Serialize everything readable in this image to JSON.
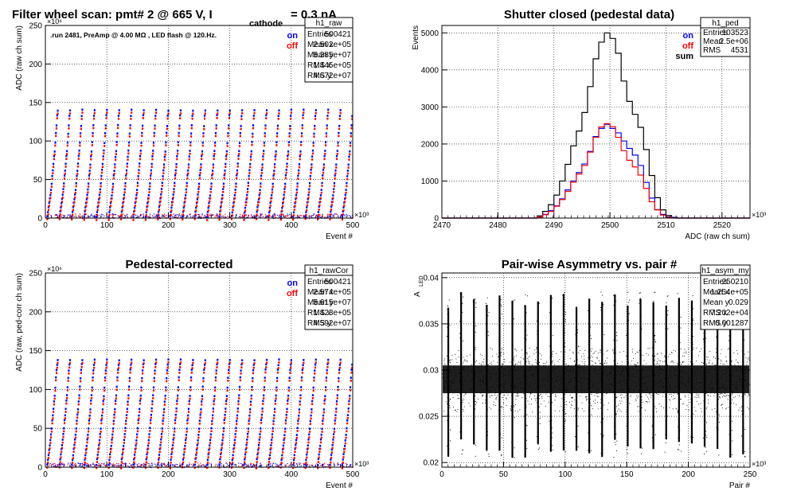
{
  "colors": {
    "on": "#0000ff",
    "off": "#ff0000",
    "sum": "#000000",
    "markers": "#000000"
  },
  "annotation": ".run 2481, PreAmp @ 4.00 MΩ , LED flash @  120.Hz.",
  "chart_data": [
    {
      "type": "scatter",
      "title": {
        "main": "Filter wheel scan: pmt#   2 @   665 V, I",
        "sub": "cathode",
        "tail": " = 0.3 nA"
      },
      "xlabel": "Event #",
      "ylabel": "ADC (raw ch sum)",
      "x_exponent": "×10³",
      "y_exponent": "×10⁶",
      "xlim": [
        0,
        500
      ],
      "ylim": [
        0,
        250
      ],
      "x_ticks": [
        0,
        100,
        200,
        300,
        400,
        500
      ],
      "y_ticks": [
        0,
        50,
        100,
        150,
        200,
        250
      ],
      "grid": true,
      "legend": [
        {
          "name": "on",
          "color": "#0000ff"
        },
        {
          "name": "off",
          "color": "#ff0000"
        }
      ],
      "stats": {
        "name": "h1_raw",
        "rows": [
          [
            "Entries",
            "500421"
          ],
          [
            "Mean x",
            "2.502e+05"
          ],
          [
            "Mean y",
            "5.285e+07"
          ],
          [
            "RMS x",
            "1.445e+05"
          ],
          [
            "RMS y",
            "4.672e+07"
          ]
        ]
      },
      "levels": [
        2,
        8,
        14,
        20,
        25,
        30,
        37,
        45,
        55,
        62,
        70,
        80,
        87,
        98,
        110,
        120,
        133,
        140
      ],
      "period": 20
    },
    {
      "type": "histogram",
      "title": {
        "main": "Shutter closed (pedestal data)"
      },
      "xlabel": "ADC (raw ch sum)",
      "ylabel": "Events",
      "x_exponent": "×10³",
      "xlim": [
        2470,
        2525
      ],
      "ylim": [
        0,
        5200
      ],
      "x_ticks": [
        2470,
        2480,
        2490,
        2500,
        2510,
        2520
      ],
      "y_ticks": [
        0,
        1000,
        2000,
        3000,
        4000,
        5000
      ],
      "grid": true,
      "legend": [
        {
          "name": "on",
          "color": "#0000ff"
        },
        {
          "name": "off",
          "color": "#ff0000"
        },
        {
          "name": "sum",
          "color": "#000000"
        }
      ],
      "stats": {
        "name": "h1_ped",
        "rows": [
          [
            "Entries",
            "103523"
          ],
          [
            "Mean",
            "2.5e+06"
          ],
          [
            "RMS",
            "4531"
          ]
        ]
      },
      "bin_edges_start": 2486,
      "bin_width": 1,
      "series": [
        {
          "name": "sum",
          "color": "#000000",
          "values": [
            0,
            60,
            180,
            360,
            620,
            1000,
            1450,
            1950,
            2350,
            2850,
            3550,
            4300,
            4750,
            5000,
            4850,
            4450,
            3700,
            3150,
            2800,
            2450,
            1850,
            1150,
            550,
            220,
            70,
            20
          ]
        },
        {
          "name": "on",
          "color": "#0000ff",
          "values": [
            0,
            30,
            100,
            200,
            330,
            520,
            760,
            1000,
            1230,
            1460,
            1800,
            2200,
            2420,
            2530,
            2420,
            2300,
            2080,
            1880,
            1700,
            1420,
            960,
            540,
            230,
            100,
            30,
            10
          ]
        },
        {
          "name": "off",
          "color": "#ff0000",
          "values": [
            0,
            30,
            90,
            180,
            320,
            500,
            720,
            970,
            1190,
            1420,
            1780,
            2180,
            2460,
            2550,
            2470,
            2180,
            1820,
            1560,
            1380,
            1160,
            800,
            440,
            220,
            80,
            20,
            0
          ]
        }
      ]
    },
    {
      "type": "scatter",
      "title": {
        "main": "Pedestal-corrected"
      },
      "xlabel": "Event #",
      "ylabel": "ADC (raw, ped-corr ch sum)",
      "x_exponent": "×10³",
      "y_exponent": "×10⁶",
      "xlim": [
        0,
        500
      ],
      "ylim": [
        0,
        250
      ],
      "x_ticks": [
        0,
        100,
        200,
        300,
        400,
        500
      ],
      "y_ticks": [
        0,
        50,
        100,
        150,
        200,
        250
      ],
      "grid": true,
      "legend": [
        {
          "name": "on",
          "color": "#0000ff"
        },
        {
          "name": "off",
          "color": "#ff0000"
        }
      ],
      "stats": {
        "name": "h1_rawCor",
        "rows": [
          [
            "Entries",
            "500421"
          ],
          [
            "Mean x",
            "2.574e+05"
          ],
          [
            "Mean y",
            "5.615e+07"
          ],
          [
            "RMS x",
            "1.423e+05"
          ],
          [
            "RMS y",
            "4.592e+07"
          ]
        ]
      },
      "levels": [
        3,
        10,
        16,
        23,
        28,
        35,
        42,
        50,
        60,
        67,
        75,
        85,
        92,
        103,
        115,
        125,
        132,
        138
      ],
      "period": 20
    },
    {
      "type": "scatter",
      "title": {
        "main": "Pair-wise Asymmetry vs. pair #"
      },
      "xlabel": "Pair #",
      "ylabel": "A",
      "ylabel_sub": "LED",
      "x_exponent": "×10³",
      "xlim": [
        0,
        250
      ],
      "ylim": [
        0.0195,
        0.0405
      ],
      "x_ticks": [
        0,
        50,
        100,
        150,
        200,
        250
      ],
      "y_ticks": [
        0.02,
        0.025,
        0.03,
        0.035,
        0.04
      ],
      "y_tick_labels": [
        "0.02",
        "0.025",
        "0.03",
        "0.035",
        "0.04"
      ],
      "grid": true,
      "stats": {
        "name": "h1_asym_my",
        "rows": [
          [
            "Entries",
            "250210"
          ],
          [
            "Mean x",
            "1.254e+05"
          ],
          [
            "Mean y",
            "0.029"
          ],
          [
            "RMS x",
            "7.202e+04"
          ],
          [
            "RMS y",
            "0.001287"
          ]
        ]
      },
      "band_center": 0.029,
      "band_halfwidth": 0.0015,
      "spike_period": 10.4,
      "spike_low": 0.0205,
      "spike_high": 0.0385
    }
  ]
}
